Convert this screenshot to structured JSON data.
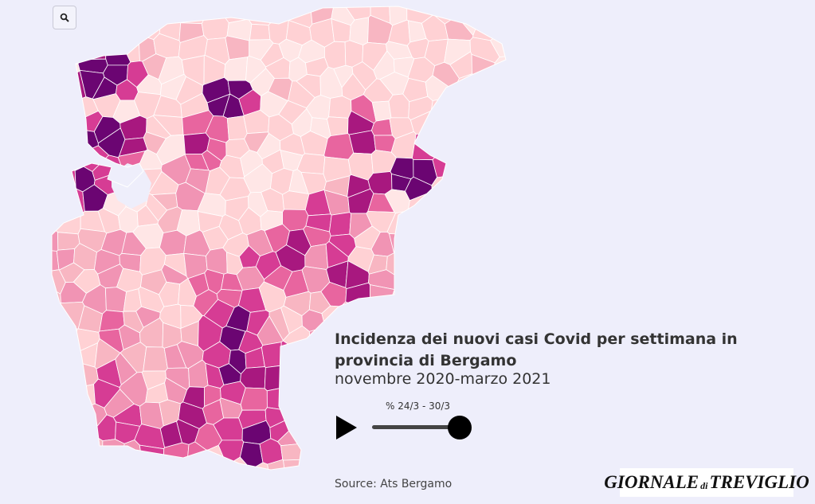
{
  "map": {
    "region": "Bergamo",
    "palette": [
      "#ffe6e6",
      "#ffd1d4",
      "#f8b6c2",
      "#f194b4",
      "#e8659f",
      "#d63c94",
      "#a8187f",
      "#6b0572"
    ]
  },
  "toolbar": {
    "zoom_icon": "magnifier-icon"
  },
  "title": "Incidenza dei nuovi casi Covid per settimana in provincia di Bergamo",
  "subtitle": "novembre 2020-marzo 2021",
  "controls": {
    "play_icon": "play-icon",
    "period_label": "% 24/3 - 30/3",
    "slider_progress": 1.0
  },
  "source": "Source: Ats Bergamo",
  "logo": {
    "part1": "GIORNALE",
    "part2": "di",
    "part3": "TREVIGLIO"
  }
}
